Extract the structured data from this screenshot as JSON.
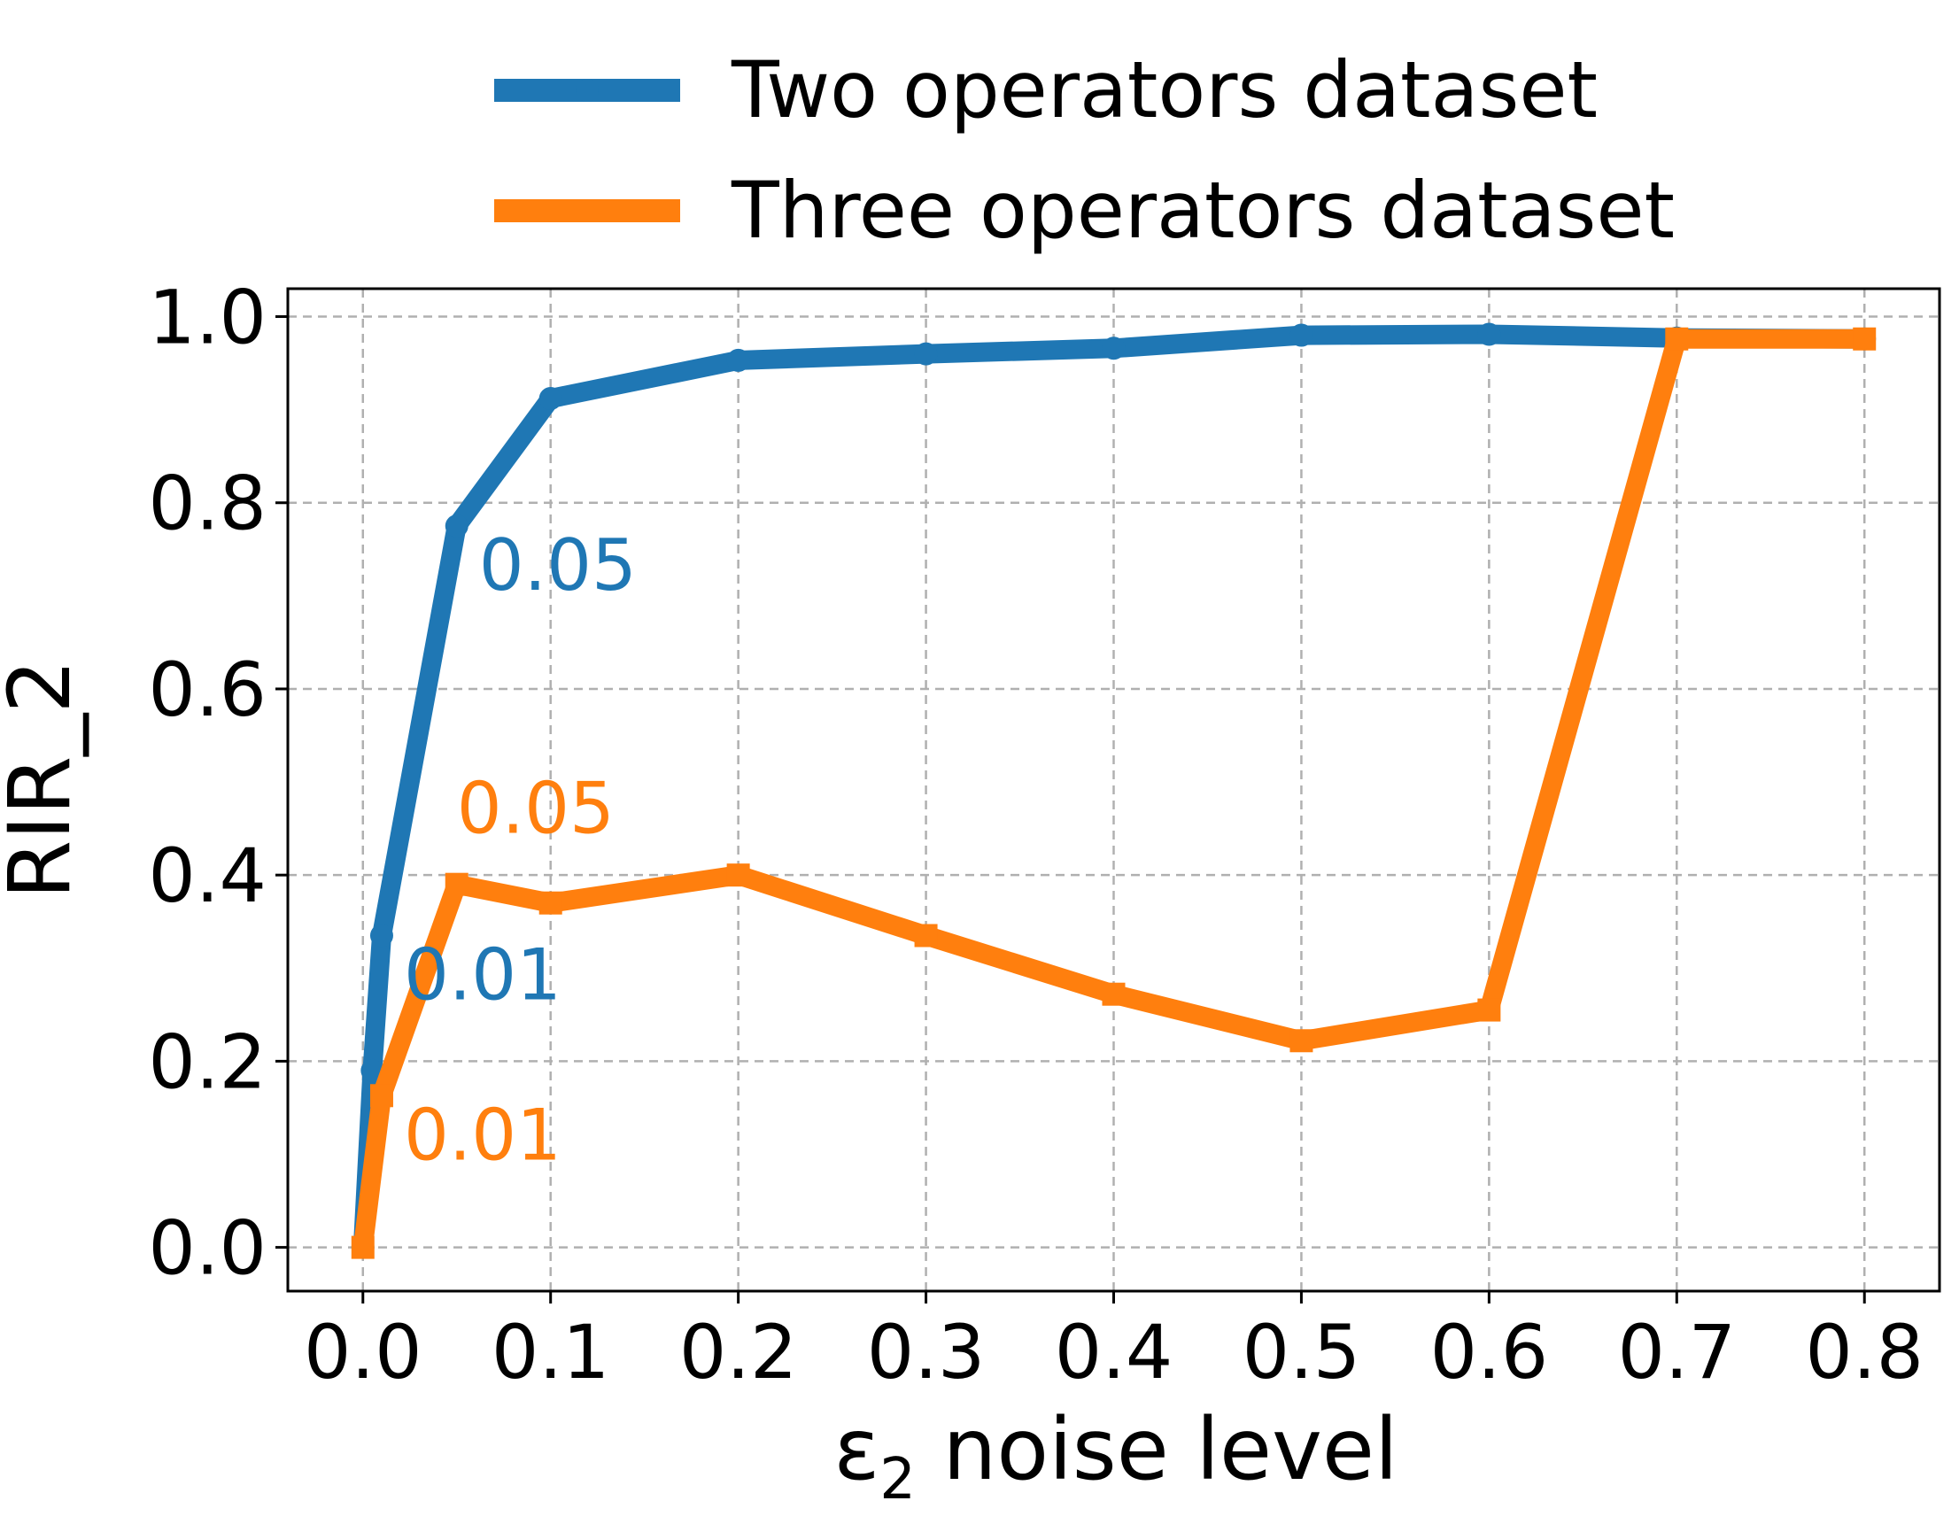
{
  "chart_data": {
    "type": "line",
    "title": "",
    "xlabel": {
      "symbol": "ε",
      "subscript": "2",
      "text": " noise level"
    },
    "ylabel": "RIR_2",
    "xlim": [
      -0.04,
      0.84
    ],
    "ylim": [
      -0.047,
      1.03
    ],
    "xticks": [
      0.0,
      0.1,
      0.2,
      0.3,
      0.4,
      0.5,
      0.6,
      0.7,
      0.8
    ],
    "xtick_labels": [
      "0.0",
      "0.1",
      "0.2",
      "0.3",
      "0.4",
      "0.5",
      "0.6",
      "0.7",
      "0.8"
    ],
    "yticks": [
      0.0,
      0.2,
      0.4,
      0.6,
      0.8,
      1.0
    ],
    "ytick_labels": [
      "0.0",
      "0.2",
      "0.4",
      "0.6",
      "0.8",
      "1.0"
    ],
    "grid": true,
    "legend_position": "top-center",
    "series": [
      {
        "name": "Two operators dataset",
        "color": "#1f77b4",
        "marker": "circle",
        "x": [
          0.0,
          0.005,
          0.01,
          0.05,
          0.1,
          0.2,
          0.3,
          0.4,
          0.5,
          0.6,
          0.7,
          0.8
        ],
        "y": [
          0.0,
          0.19,
          0.335,
          0.775,
          0.912,
          0.953,
          0.96,
          0.966,
          0.98,
          0.981,
          0.977,
          0.976
        ]
      },
      {
        "name": "Three operators dataset",
        "color": "#ff7f0e",
        "marker": "square",
        "x": [
          0.0,
          0.01,
          0.05,
          0.1,
          0.2,
          0.3,
          0.4,
          0.5,
          0.6,
          0.7,
          0.8
        ],
        "y": [
          0.0,
          0.163,
          0.39,
          0.37,
          0.4,
          0.335,
          0.272,
          0.222,
          0.255,
          0.976,
          0.976
        ]
      }
    ],
    "annotations": [
      {
        "text": "0.05",
        "series": 0,
        "x": 0.05,
        "y": 0.775,
        "position": "right-below"
      },
      {
        "text": "0.01",
        "series": 0,
        "x": 0.01,
        "y": 0.335,
        "position": "right-below"
      },
      {
        "text": "0.05",
        "series": 1,
        "x": 0.05,
        "y": 0.39,
        "position": "above"
      },
      {
        "text": "0.01",
        "series": 1,
        "x": 0.01,
        "y": 0.163,
        "position": "right-below"
      }
    ]
  }
}
